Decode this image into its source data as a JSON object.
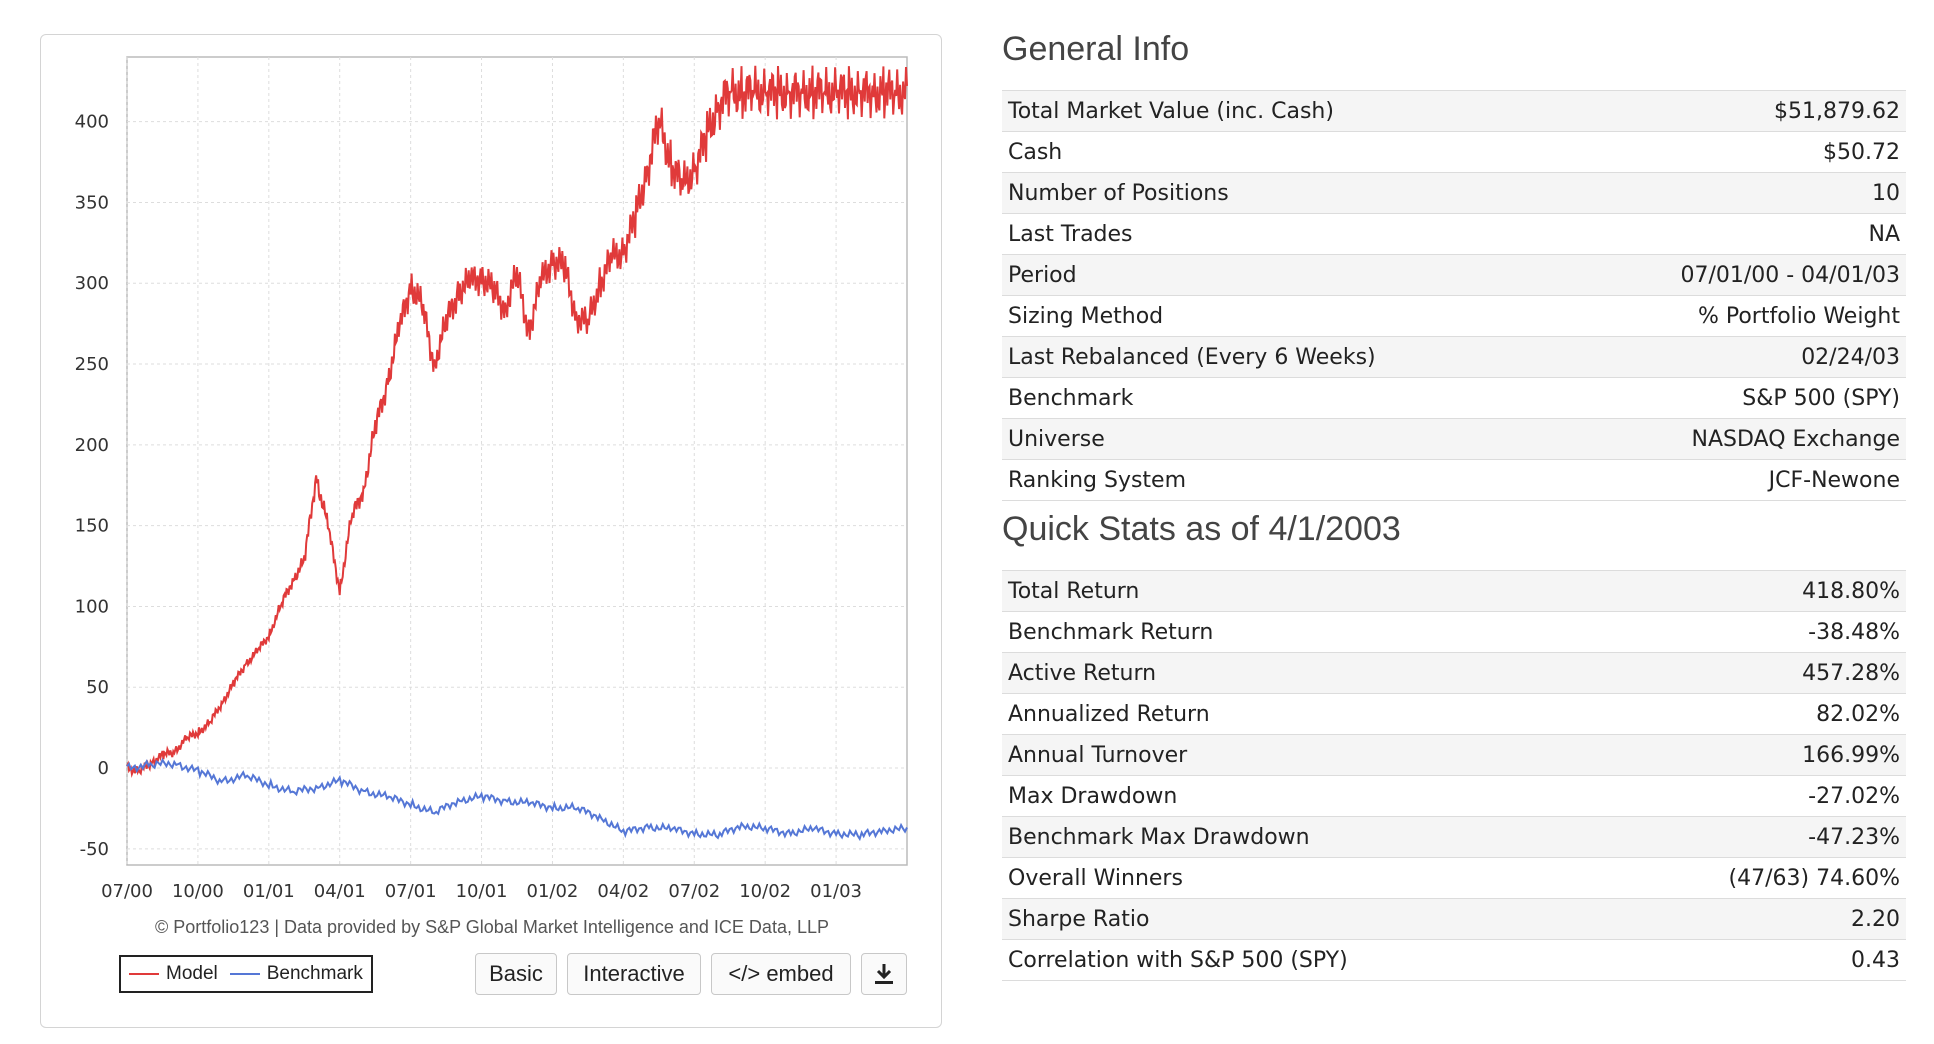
{
  "chart_data": {
    "type": "line",
    "x_tick_labels": [
      "07/00",
      "10/00",
      "01/01",
      "04/01",
      "07/01",
      "10/01",
      "01/02",
      "04/02",
      "07/02",
      "10/02",
      "01/03"
    ],
    "y_ticks": [
      -50,
      0,
      50,
      100,
      150,
      200,
      250,
      300,
      350,
      400
    ],
    "ylim": [
      -60,
      440
    ],
    "xlim": [
      0,
      33
    ],
    "grid": true,
    "legend_placement": "bottom-left",
    "series": [
      {
        "name": "Model",
        "color": "#e03a3a",
        "x": [
          0,
          0.5,
          1,
          1.5,
          2,
          2.5,
          3,
          3.5,
          4,
          4.5,
          5,
          5.5,
          6,
          6.5,
          7,
          7.5,
          8,
          8.5,
          9,
          9.5,
          10,
          10.5,
          11,
          11.5,
          12,
          12.5,
          13,
          13.5,
          14,
          14.5,
          15,
          15.5,
          16,
          16.5,
          17,
          17.5,
          18,
          18.5,
          19,
          19.5,
          20,
          20.5,
          21,
          21.5,
          22,
          22.5,
          23,
          23.5,
          24,
          24.5,
          25,
          25.5,
          26,
          26.5,
          27,
          27.5,
          28,
          28.5,
          29,
          29.5,
          30,
          30.5,
          31,
          31.5,
          32,
          32.5,
          33
        ],
        "y": [
          0,
          -2,
          3,
          8,
          10,
          18,
          22,
          28,
          40,
          52,
          64,
          72,
          82,
          100,
          116,
          128,
          180,
          150,
          110,
          155,
          172,
          210,
          238,
          270,
          300,
          285,
          250,
          275,
          295,
          300,
          305,
          295,
          285,
          305,
          270,
          300,
          315,
          310,
          280,
          275,
          300,
          315,
          320,
          340,
          370,
          400,
          375,
          360,
          370,
          390,
          410,
          418,
          418,
          418,
          418,
          418,
          418,
          418,
          418,
          418,
          418,
          418,
          418,
          418,
          418,
          418,
          418
        ]
      },
      {
        "name": "Benchmark",
        "color": "#5577d6",
        "x": [
          0,
          1,
          2,
          3,
          4,
          5,
          6,
          7,
          8,
          9,
          10,
          11,
          12,
          13,
          14,
          15,
          16,
          17,
          18,
          19,
          20,
          21,
          22,
          23,
          24,
          25,
          26,
          27,
          28,
          29,
          30,
          31,
          32,
          33
        ],
        "y": [
          0,
          2,
          3,
          -2,
          -8,
          -5,
          -10,
          -15,
          -12,
          -8,
          -14,
          -18,
          -22,
          -28,
          -20,
          -18,
          -20,
          -22,
          -24,
          -25,
          -30,
          -40,
          -36,
          -38,
          -40,
          -42,
          -35,
          -38,
          -40,
          -38,
          -40,
          -42,
          -38,
          -38
        ]
      }
    ]
  },
  "credit": "© Portfolio123 | Data provided by S&P Global Market Intelligence and ICE Data, LLP",
  "legend": {
    "model": "Model",
    "benchmark": "Benchmark"
  },
  "buttons": {
    "basic": "Basic",
    "interactive": "Interactive",
    "embed": "</> embed",
    "download_icon": "download-icon"
  },
  "general_info": {
    "title": "General Info",
    "rows": [
      {
        "label": "Total Market Value (inc. Cash)",
        "value": "$51,879.62"
      },
      {
        "label": "Cash",
        "value": "$50.72"
      },
      {
        "label": "Number of Positions",
        "value": "10",
        "link": true
      },
      {
        "label": "Last Trades",
        "value": "NA"
      },
      {
        "label": "Period",
        "value": "07/01/00 - 04/01/03"
      },
      {
        "label": "Sizing Method",
        "value": "% Portfolio Weight"
      },
      {
        "label": "Last Rebalanced (Every 6 Weeks)",
        "value": "02/24/03"
      },
      {
        "label": "Benchmark",
        "value": "S&P 500 (SPY)"
      },
      {
        "label": "Universe",
        "value": "NASDAQ Exchange"
      },
      {
        "label": "Ranking System",
        "value": "JCF-Newone",
        "value_link": true
      }
    ]
  },
  "quick_stats": {
    "title": "Quick Stats as of 4/1/2003",
    "rows": [
      {
        "label": "Total Return",
        "value": "418.80%"
      },
      {
        "label": "Benchmark Return",
        "value": "-38.48%",
        "negative": true
      },
      {
        "label": "Active Return",
        "value": "457.28%"
      },
      {
        "label": "Annualized Return",
        "value": "82.02%"
      },
      {
        "label": "Annual Turnover",
        "value": "166.99%"
      },
      {
        "label": "Max Drawdown",
        "value": "-27.02%",
        "negative": true
      },
      {
        "label": "Benchmark Max Drawdown",
        "value": "-47.23%",
        "negative": true
      },
      {
        "label": "Overall Winners",
        "value": "(47/63) 74.60%"
      },
      {
        "label": "Sharpe Ratio",
        "value": "2.20"
      },
      {
        "label": "Correlation with S&P 500 (SPY)",
        "value": "0.43"
      }
    ]
  }
}
